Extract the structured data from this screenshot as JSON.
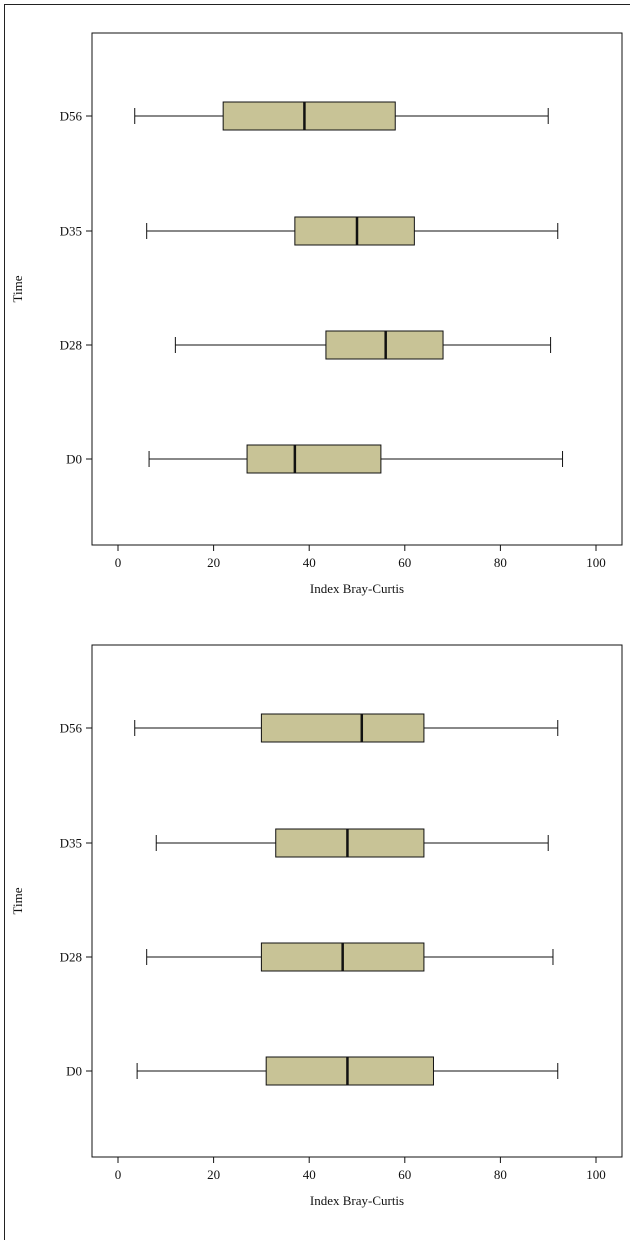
{
  "chart_data": [
    {
      "type": "boxplot",
      "orientation": "horizontal",
      "xlabel": "Index Bray-Curtis",
      "ylabel": "Time",
      "xlim": [
        -5,
        105
      ],
      "xticks": [
        0,
        20,
        40,
        60,
        80,
        100
      ],
      "categories": [
        "D0",
        "D28",
        "D35",
        "D56"
      ],
      "box_color": "#c8c396",
      "boxes": [
        {
          "label": "D0",
          "whisker_low": 6.5,
          "q1": 27,
          "median": 37,
          "q3": 55,
          "whisker_high": 93
        },
        {
          "label": "D28",
          "whisker_low": 12,
          "q1": 43.5,
          "median": 56,
          "q3": 68,
          "whisker_high": 90.5
        },
        {
          "label": "D35",
          "whisker_low": 6,
          "q1": 37,
          "median": 50,
          "q3": 62,
          "whisker_high": 92
        },
        {
          "label": "D56",
          "whisker_low": 3.5,
          "q1": 22,
          "median": 39,
          "q3": 58,
          "whisker_high": 90
        }
      ]
    },
    {
      "type": "boxplot",
      "orientation": "horizontal",
      "xlabel": "Index Bray-Curtis",
      "ylabel": "Time",
      "xlim": [
        -5,
        105
      ],
      "xticks": [
        0,
        20,
        40,
        60,
        80,
        100
      ],
      "categories": [
        "D0",
        "D28",
        "D35",
        "D56"
      ],
      "box_color": "#c8c396",
      "boxes": [
        {
          "label": "D0",
          "whisker_low": 4,
          "q1": 31,
          "median": 48,
          "q3": 66,
          "whisker_high": 92
        },
        {
          "label": "D28",
          "whisker_low": 6,
          "q1": 30,
          "median": 47,
          "q3": 64,
          "whisker_high": 91
        },
        {
          "label": "D35",
          "whisker_low": 8,
          "q1": 33,
          "median": 48,
          "q3": 64,
          "whisker_high": 90
        },
        {
          "label": "D56",
          "whisker_low": 3.5,
          "q1": 30,
          "median": 51,
          "q3": 64,
          "whisker_high": 92
        }
      ]
    }
  ]
}
